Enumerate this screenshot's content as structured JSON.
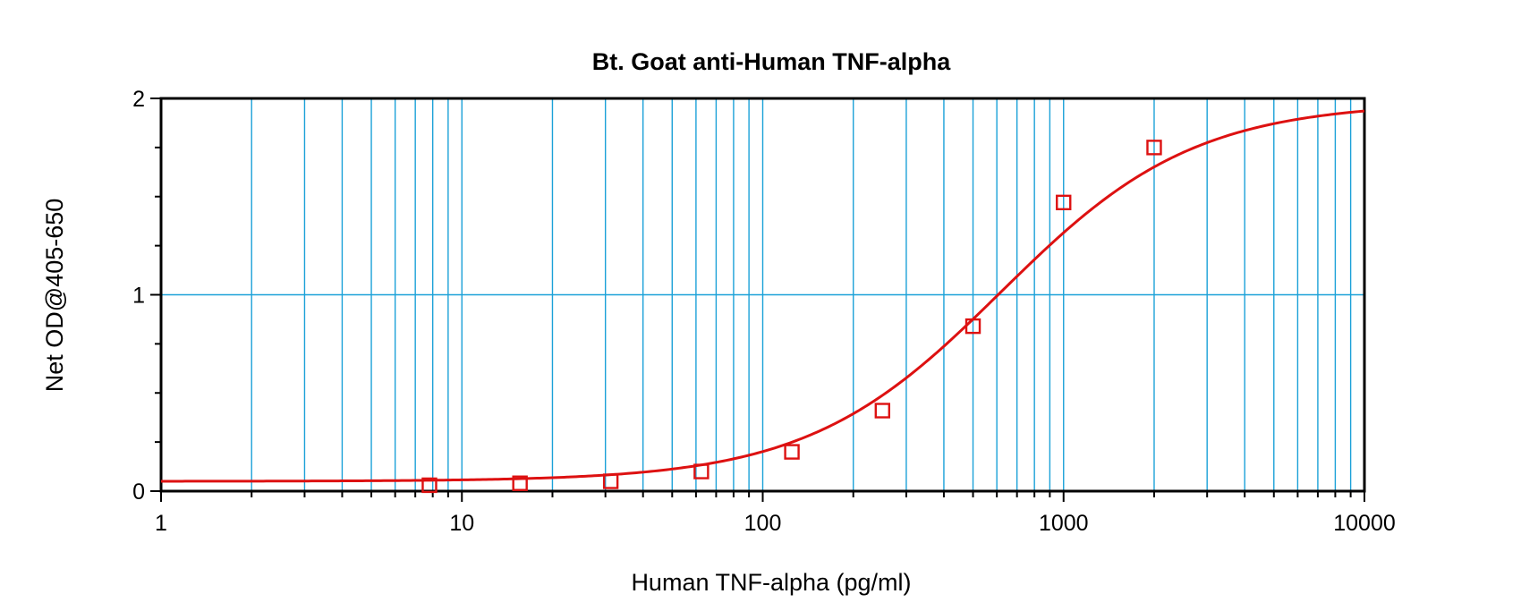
{
  "chart_data": {
    "type": "scatter",
    "title": "Bt. Goat anti-Human TNF-alpha",
    "xlabel": "Human TNF-alpha (pg/ml)",
    "ylabel": "Net OD@405-650",
    "xscale": "log",
    "xlim": [
      1,
      10000
    ],
    "ylim": [
      0,
      2
    ],
    "x_ticks": [
      1,
      10,
      100,
      1000,
      10000
    ],
    "x_tick_labels": [
      "1",
      "10",
      "100",
      "1000",
      "10000"
    ],
    "y_ticks": [
      0,
      1,
      2
    ],
    "y_tick_labels": [
      "0",
      "1",
      "2"
    ],
    "grid": true,
    "series": [
      {
        "kind": "points",
        "marker": "open-square",
        "x": [
          7.8,
          15.6,
          31.25,
          62.5,
          125,
          250,
          500,
          1000,
          2000
        ],
        "y": [
          0.03,
          0.04,
          0.05,
          0.1,
          0.2,
          0.41,
          0.84,
          1.47,
          1.75
        ]
      },
      {
        "kind": "fit-curve",
        "model": "4PL",
        "bottom": 0.05,
        "top": 1.98,
        "ec50": 620,
        "hill": 1.35
      }
    ],
    "colors": {
      "series": "#dd1111",
      "grid": "#1ba1d8",
      "axes": "#000000",
      "background": "#ffffff"
    }
  }
}
